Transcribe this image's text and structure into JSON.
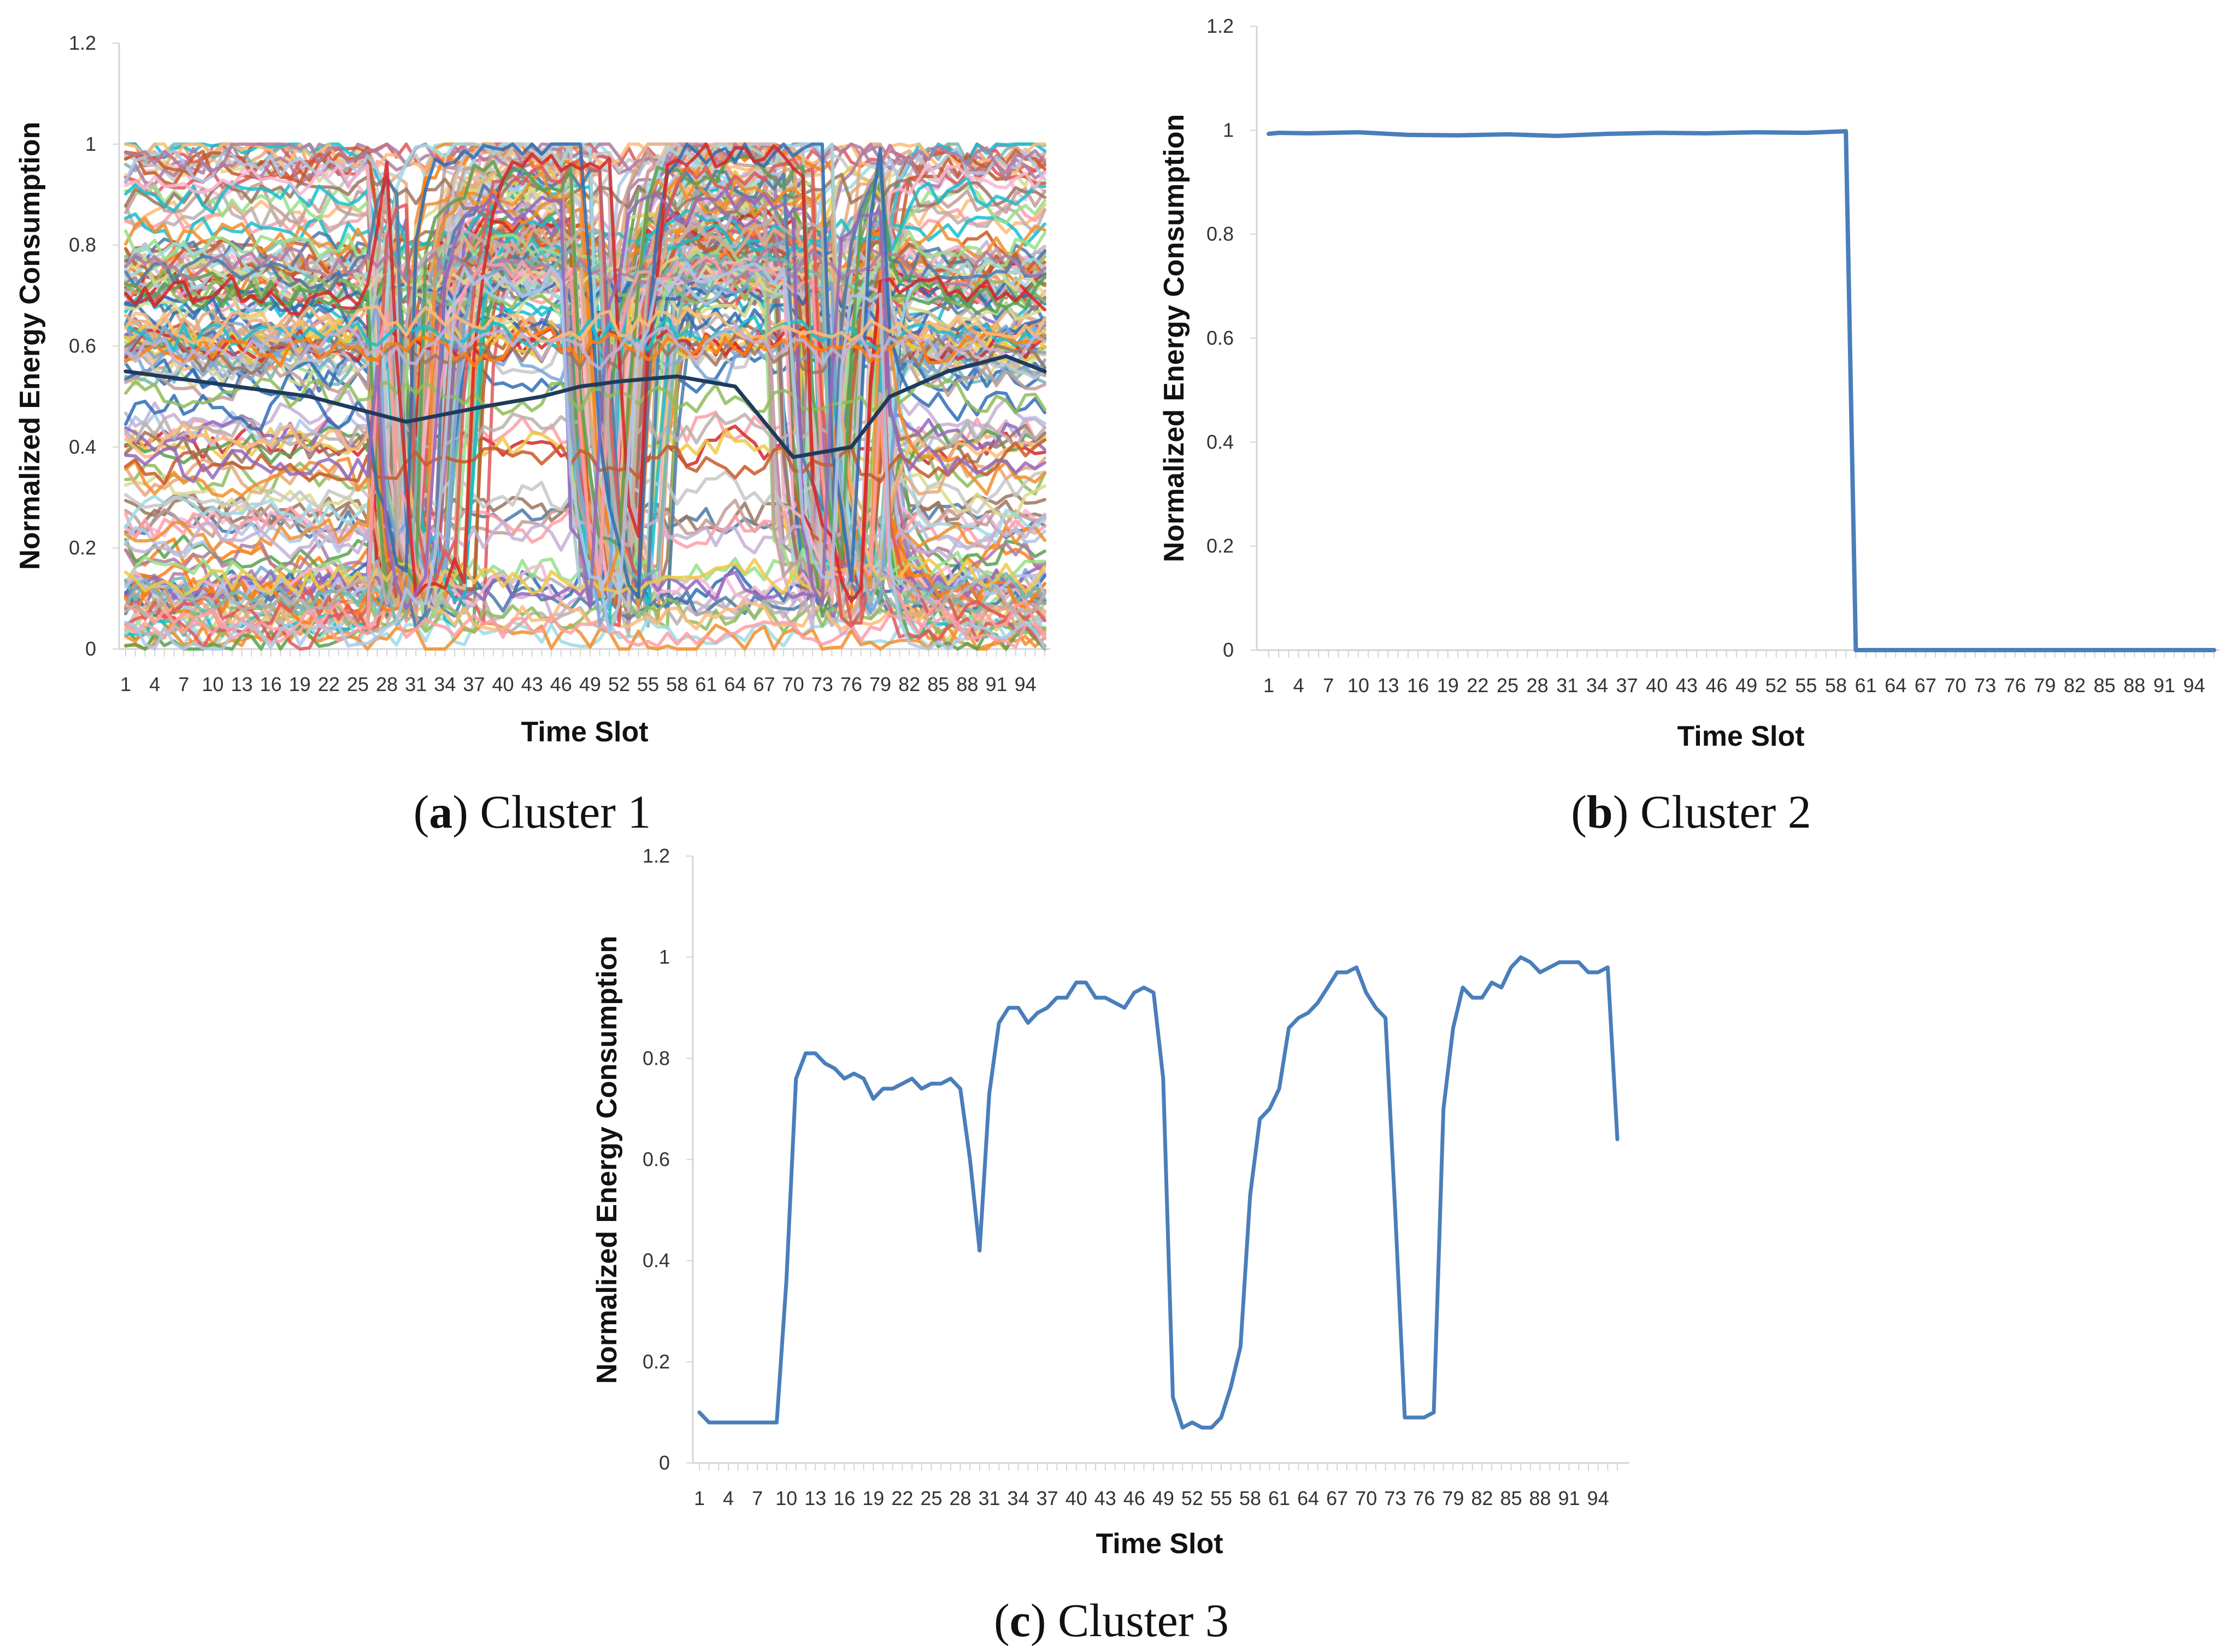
{
  "chart_data": [
    {
      "id": "a",
      "type": "line",
      "caption_letter": "a",
      "caption_text": "Cluster 1",
      "xlabel": "Time Slot",
      "ylabel": "Normalized Energy Consumption",
      "ylim": [
        0,
        1.2
      ],
      "yticks": [
        "0",
        "0.2",
        "0.4",
        "0.6",
        "0.8",
        "1",
        "1.2"
      ],
      "x_range": [
        1,
        96
      ],
      "xtick_labels": [
        "1",
        "4",
        "7",
        "10",
        "13",
        "16",
        "19",
        "22",
        "25",
        "28",
        "31",
        "34",
        "37",
        "40",
        "43",
        "46",
        "49",
        "52",
        "55",
        "58",
        "61",
        "64",
        "67",
        "70",
        "73",
        "76",
        "79",
        "82",
        "85",
        "88",
        "91",
        "94"
      ],
      "series_count": 160,
      "series_note": "many overlapping daily profiles in varied colors",
      "highlight_series": {
        "name": "dark profile",
        "color": "#1f3b5c",
        "x": [
          1,
          20,
          30,
          38,
          44,
          48,
          52,
          58,
          64,
          70,
          76,
          80,
          86,
          92,
          96
        ],
        "values": [
          0.55,
          0.5,
          0.45,
          0.48,
          0.5,
          0.52,
          0.53,
          0.54,
          0.52,
          0.38,
          0.4,
          0.5,
          0.55,
          0.58,
          0.55
        ]
      },
      "palette": [
        "#4e79a7",
        "#f28e2b",
        "#e15759",
        "#76b7b2",
        "#59a14f",
        "#edc948",
        "#b07aa1",
        "#ff9da7",
        "#9c755f",
        "#bab0ac",
        "#c85a2a",
        "#2f6db5",
        "#8fbc5a",
        "#d62728",
        "#9467bd",
        "#17becf",
        "#ff7f0e",
        "#aec7e8",
        "#ffbb78",
        "#c5b0d5",
        "#f7b6d2",
        "#98df8a",
        "#c49c94",
        "#dbdb8d",
        "#9edae5",
        "#c7c7c7",
        "#e8a87c",
        "#7aa6d6"
      ]
    },
    {
      "id": "b",
      "type": "line",
      "caption_letter": "b",
      "caption_text": "Cluster 2",
      "xlabel": "Time Slot",
      "ylabel": "Normalized Energy Consumption",
      "ylim": [
        0,
        1.2
      ],
      "yticks": [
        "0",
        "0.2",
        "0.4",
        "0.6",
        "0.8",
        "1",
        "1.2"
      ],
      "x_range": [
        1,
        96
      ],
      "xtick_labels": [
        "1",
        "4",
        "7",
        "10",
        "13",
        "16",
        "19",
        "22",
        "25",
        "28",
        "31",
        "34",
        "37",
        "40",
        "43",
        "46",
        "49",
        "52",
        "55",
        "58",
        "61",
        "64",
        "67",
        "70",
        "73",
        "76",
        "79",
        "82",
        "85",
        "88",
        "91",
        "94"
      ],
      "series": [
        {
          "name": "Cluster 2",
          "color": "#4a7ebb",
          "x": [
            1,
            2,
            5,
            10,
            15,
            20,
            25,
            30,
            35,
            40,
            45,
            50,
            55,
            59,
            60,
            96
          ],
          "values": [
            0.993,
            0.995,
            0.994,
            0.996,
            0.991,
            0.99,
            0.992,
            0.989,
            0.993,
            0.995,
            0.994,
            0.996,
            0.995,
            0.998,
            0.0,
            0.0
          ]
        }
      ]
    },
    {
      "id": "c",
      "type": "line",
      "caption_letter": "c",
      "caption_text": "Cluster 3",
      "xlabel": "Time Slot",
      "ylabel": "Normalized Energy Consumption",
      "ylim": [
        0,
        1.2
      ],
      "yticks": [
        "0",
        "0.2",
        "0.4",
        "0.6",
        "0.8",
        "1",
        "1.2"
      ],
      "x_range": [
        1,
        96
      ],
      "xtick_labels": [
        "1",
        "4",
        "7",
        "10",
        "13",
        "16",
        "19",
        "22",
        "25",
        "28",
        "31",
        "34",
        "37",
        "40",
        "43",
        "46",
        "49",
        "52",
        "55",
        "58",
        "61",
        "64",
        "67",
        "70",
        "73",
        "76",
        "79",
        "82",
        "85",
        "88",
        "91",
        "94"
      ],
      "series": [
        {
          "name": "Cluster 3",
          "color": "#4a7ebb",
          "x": [
            1,
            2,
            3,
            4,
            5,
            6,
            7,
            8,
            9,
            10,
            11,
            12,
            13,
            14,
            15,
            16,
            17,
            18,
            19,
            20,
            21,
            22,
            23,
            24,
            25,
            26,
            27,
            28,
            29,
            30,
            31,
            32,
            33,
            34,
            35,
            36,
            37,
            38,
            39,
            40,
            41,
            42,
            43,
            44,
            45,
            46,
            47,
            48,
            49,
            50,
            51,
            52,
            53,
            54,
            55,
            56,
            57,
            58,
            59,
            60,
            61,
            62,
            63,
            64,
            65,
            66,
            67,
            68,
            69,
            70,
            71,
            72,
            73,
            74,
            75,
            76,
            77,
            78,
            79,
            80,
            81,
            82,
            83,
            84,
            85,
            86,
            87,
            88,
            89,
            90,
            91,
            92,
            93,
            94,
            95,
            96
          ],
          "values": [
            0.1,
            0.08,
            0.08,
            0.08,
            0.08,
            0.08,
            0.08,
            0.08,
            0.08,
            0.36,
            0.76,
            0.81,
            0.81,
            0.79,
            0.78,
            0.76,
            0.77,
            0.76,
            0.72,
            0.74,
            0.74,
            0.75,
            0.76,
            0.74,
            0.75,
            0.75,
            0.76,
            0.74,
            0.6,
            0.42,
            0.73,
            0.87,
            0.9,
            0.9,
            0.87,
            0.89,
            0.9,
            0.92,
            0.92,
            0.95,
            0.95,
            0.92,
            0.92,
            0.91,
            0.9,
            0.93,
            0.94,
            0.93,
            0.76,
            0.13,
            0.07,
            0.08,
            0.07,
            0.07,
            0.09,
            0.15,
            0.23,
            0.53,
            0.68,
            0.7,
            0.74,
            0.86,
            0.88,
            0.89,
            0.91,
            0.94,
            0.97,
            0.97,
            0.98,
            0.93,
            0.9,
            0.88,
            0.5,
            0.09,
            0.09,
            0.09,
            0.1,
            0.7,
            0.86,
            0.94,
            0.92,
            0.92,
            0.95,
            0.94,
            0.98,
            1.0,
            0.99,
            0.97,
            0.98,
            0.99,
            0.99,
            0.99,
            0.97,
            0.97,
            0.98,
            0.64
          ]
        }
      ]
    }
  ]
}
